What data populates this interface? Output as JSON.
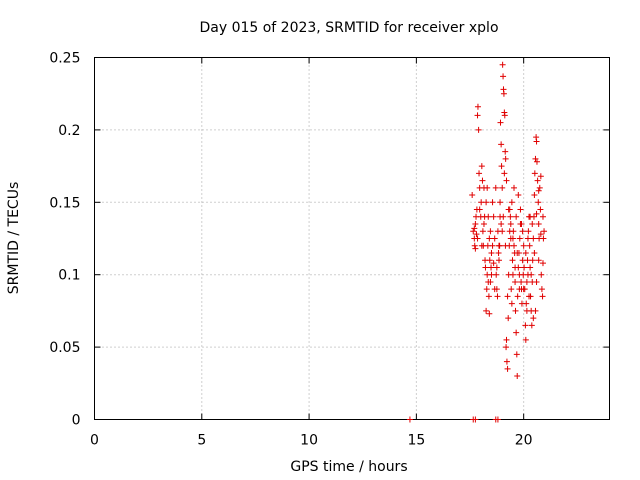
{
  "chart_data": {
    "type": "scatter",
    "title": "Day 015 of 2023, SRMTID for receiver xplo",
    "xlabel": "GPS time / hours",
    "ylabel": "SRMTID / TECUs",
    "xlim": [
      0,
      24
    ],
    "ylim": [
      0,
      0.25
    ],
    "x_ticks": [
      "0",
      "5",
      "10",
      "15",
      "20"
    ],
    "y_ticks": [
      "0",
      "0.05",
      "0.1",
      "0.15",
      "0.2",
      "0.25"
    ],
    "grid": true,
    "legend": "none",
    "marker": "plus",
    "color": "#e00000",
    "series": [
      {
        "points": [
          [
            14.7,
            0
          ],
          [
            17.65,
            0
          ],
          [
            17.75,
            0
          ],
          [
            18.7,
            0
          ],
          [
            18.8,
            0
          ],
          [
            17.6,
            0.155
          ],
          [
            17.65,
            0.13
          ],
          [
            17.7,
            0.125
          ],
          [
            17.72,
            0.12
          ],
          [
            17.75,
            0.135
          ],
          [
            17.78,
            0.14
          ],
          [
            17.8,
            0.128
          ],
          [
            17.82,
            0.145
          ],
          [
            17.85,
            0.21
          ],
          [
            17.87,
            0.216
          ],
          [
            17.9,
            0.2
          ],
          [
            17.92,
            0.17
          ],
          [
            17.95,
            0.16
          ],
          [
            18.0,
            0.14
          ],
          [
            18.02,
            0.15
          ],
          [
            18.05,
            0.175
          ],
          [
            18.08,
            0.165
          ],
          [
            18.1,
            0.13
          ],
          [
            18.12,
            0.12
          ],
          [
            18.15,
            0.16
          ],
          [
            18.18,
            0.14
          ],
          [
            18.2,
            0.11
          ],
          [
            18.22,
            0.105
          ],
          [
            18.25,
            0.075
          ],
          [
            18.28,
            0.09
          ],
          [
            18.3,
            0.1
          ],
          [
            18.33,
            0.12
          ],
          [
            18.35,
            0.095
          ],
          [
            18.38,
            0.085
          ],
          [
            18.4,
            0.073
          ],
          [
            18.42,
            0.11
          ],
          [
            18.45,
            0.13
          ],
          [
            18.48,
            0.105
          ],
          [
            18.5,
            0.1
          ],
          [
            18.55,
            0.15
          ],
          [
            18.6,
            0.14
          ],
          [
            18.65,
            0.125
          ],
          [
            18.7,
            0.16
          ],
          [
            18.72,
            0.1
          ],
          [
            18.75,
            0.09
          ],
          [
            18.78,
            0.085
          ],
          [
            18.8,
            0.13
          ],
          [
            18.83,
            0.115
          ],
          [
            18.85,
            0.11
          ],
          [
            18.88,
            0.12
          ],
          [
            18.9,
            0.15
          ],
          [
            18.92,
            0.205
          ],
          [
            18.95,
            0.19
          ],
          [
            18.97,
            0.175
          ],
          [
            19.0,
            0.16
          ],
          [
            19.02,
            0.245
          ],
          [
            19.04,
            0.237
          ],
          [
            19.06,
            0.228
          ],
          [
            19.08,
            0.225
          ],
          [
            19.1,
            0.212
          ],
          [
            19.12,
            0.21
          ],
          [
            19.14,
            0.185
          ],
          [
            19.16,
            0.18
          ],
          [
            19.18,
            0.05
          ],
          [
            19.2,
            0.055
          ],
          [
            19.22,
            0.04
          ],
          [
            19.25,
            0.035
          ],
          [
            19.28,
            0.07
          ],
          [
            19.3,
            0.1
          ],
          [
            19.33,
            0.12
          ],
          [
            19.35,
            0.145
          ],
          [
            19.38,
            0.14
          ],
          [
            19.4,
            0.125
          ],
          [
            19.42,
            0.09
          ],
          [
            19.45,
            0.08
          ],
          [
            19.48,
            0.11
          ],
          [
            19.5,
            0.1
          ],
          [
            19.52,
            0.13
          ],
          [
            19.55,
            0.16
          ],
          [
            19.58,
            0.115
          ],
          [
            19.6,
            0.095
          ],
          [
            19.62,
            0.075
          ],
          [
            19.65,
            0.06
          ],
          [
            19.68,
            0.045
          ],
          [
            19.7,
            0.03
          ],
          [
            19.72,
            0.085
          ],
          [
            19.75,
            0.105
          ],
          [
            19.78,
            0.115
          ],
          [
            19.8,
            0.1
          ],
          [
            19.82,
            0.125
          ],
          [
            19.85,
            0.135
          ],
          [
            19.88,
            0.095
          ],
          [
            19.9,
            0.09
          ],
          [
            19.92,
            0.08
          ],
          [
            19.95,
            0.11
          ],
          [
            19.98,
            0.1
          ],
          [
            20.0,
            0.12
          ],
          [
            20.02,
            0.105
          ],
          [
            20.05,
            0.09
          ],
          [
            20.08,
            0.065
          ],
          [
            20.1,
            0.055
          ],
          [
            20.12,
            0.08
          ],
          [
            20.15,
            0.095
          ],
          [
            20.18,
            0.11
          ],
          [
            20.2,
            0.1
          ],
          [
            20.22,
            0.13
          ],
          [
            20.25,
            0.14
          ],
          [
            20.28,
            0.12
          ],
          [
            20.3,
            0.105
          ],
          [
            20.32,
            0.085
          ],
          [
            20.35,
            0.075
          ],
          [
            20.38,
            0.065
          ],
          [
            20.4,
            0.095
          ],
          [
            20.42,
            0.11
          ],
          [
            20.45,
            0.125
          ],
          [
            20.48,
            0.14
          ],
          [
            20.5,
            0.155
          ],
          [
            20.52,
            0.17
          ],
          [
            20.55,
            0.18
          ],
          [
            20.58,
            0.195
          ],
          [
            20.6,
            0.192
          ],
          [
            20.62,
            0.178
          ],
          [
            20.65,
            0.165
          ],
          [
            20.68,
            0.15
          ],
          [
            20.7,
            0.135
          ],
          [
            20.72,
            0.125
          ],
          [
            20.75,
            0.16
          ],
          [
            20.78,
            0.145
          ],
          [
            20.8,
            0.128
          ],
          [
            20.82,
            0.1
          ],
          [
            20.85,
            0.09
          ],
          [
            20.88,
            0.085
          ],
          [
            20.9,
            0.108
          ],
          [
            20.92,
            0.125
          ],
          [
            20.95,
            0.13
          ],
          [
            20.7,
            0.11
          ],
          [
            20.6,
            0.095
          ],
          [
            20.55,
            0.075
          ],
          [
            20.45,
            0.07
          ],
          [
            20.35,
            0.1
          ],
          [
            20.25,
            0.085
          ],
          [
            20.15,
            0.075
          ],
          [
            19.95,
            0.13
          ],
          [
            19.85,
            0.145
          ],
          [
            19.75,
            0.155
          ],
          [
            19.65,
            0.14
          ],
          [
            19.55,
            0.12
          ],
          [
            19.45,
            0.15
          ],
          [
            19.35,
            0.13
          ],
          [
            19.25,
            0.085
          ],
          [
            19.15,
            0.12
          ],
          [
            19.05,
            0.14
          ],
          [
            18.95,
            0.135
          ],
          [
            18.85,
            0.12
          ],
          [
            18.75,
            0.105
          ],
          [
            18.65,
            0.09
          ],
          [
            18.55,
            0.12
          ],
          [
            18.45,
            0.095
          ],
          [
            18.35,
            0.14
          ],
          [
            18.25,
            0.15
          ],
          [
            18.15,
            0.135
          ],
          [
            18.05,
            0.12
          ],
          [
            17.95,
            0.145
          ],
          [
            17.85,
            0.125
          ],
          [
            17.75,
            0.118
          ],
          [
            17.7,
            0.132
          ],
          [
            18.3,
            0.16
          ],
          [
            18.4,
            0.125
          ],
          [
            18.5,
            0.115
          ],
          [
            18.6,
            0.108
          ],
          [
            18.9,
            0.14
          ],
          [
            19.0,
            0.13
          ],
          [
            19.1,
            0.17
          ],
          [
            19.2,
            0.165
          ],
          [
            19.3,
            0.145
          ],
          [
            19.4,
            0.135
          ],
          [
            19.5,
            0.125
          ],
          [
            19.6,
            0.105
          ],
          [
            19.7,
            0.115
          ],
          [
            19.8,
            0.09
          ],
          [
            19.9,
            0.135
          ],
          [
            20.0,
            0.09
          ],
          [
            20.1,
            0.115
          ],
          [
            20.2,
            0.125
          ],
          [
            20.3,
            0.14
          ],
          [
            20.4,
            0.135
          ],
          [
            20.5,
            0.115
          ],
          [
            20.6,
            0.142
          ],
          [
            20.7,
            0.158
          ],
          [
            20.8,
            0.168
          ],
          [
            20.9,
            0.14
          ]
        ]
      }
    ]
  }
}
